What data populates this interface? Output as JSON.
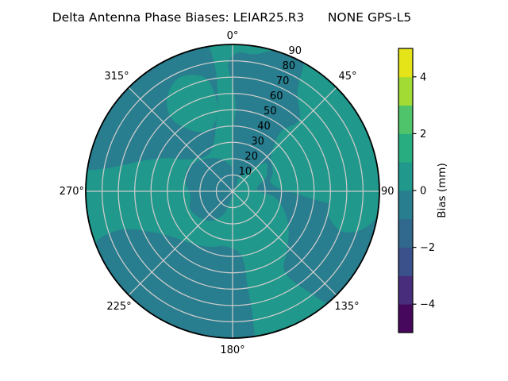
{
  "figure": {
    "background": "#ffffff"
  },
  "chart_data": {
    "type": "polar_contour",
    "title": "Delta Antenna Phase Biases: LEIAR25.R3      NONE GPS-L5",
    "angular_axis": {
      "tick_angles_deg": [
        0,
        45,
        90,
        135,
        180,
        225,
        270,
        315
      ],
      "tick_labels": [
        "0°",
        "45°",
        "90",
        "135°",
        "180°",
        "225°",
        "270°",
        "315°"
      ]
    },
    "radial_axis": {
      "tick_values": [
        10,
        20,
        30,
        40,
        50,
        60,
        70,
        80,
        90
      ],
      "tick_labels": [
        "10",
        "20",
        "30",
        "40",
        "50",
        "60",
        "70",
        "80",
        "90"
      ],
      "label_angle_deg": 22.5,
      "rmax": 90
    },
    "colorbar": {
      "label": "Bias (mm)",
      "vmin": -5,
      "vmax": 5,
      "tick_values": [
        4,
        2,
        0,
        -2,
        -4
      ],
      "tick_labels": [
        "4",
        "2",
        "0",
        "−2",
        "−4"
      ],
      "level_colors_low_to_high": [
        "#46085c",
        "#472d7b",
        "#3b518b",
        "#31688e",
        "#287d8e",
        "#20988b",
        "#27ad80",
        "#50c46a",
        "#a2db34",
        "#e5e419"
      ]
    },
    "field": {
      "base_color": "#20988b",
      "base_level": "0 to 1 mm",
      "negative_color": "#287d8e",
      "negative_level": "-1 to 0 mm"
    },
    "grid_color": "#cccccc",
    "spine_color": "#000000",
    "text_color": "#000000",
    "regions": [
      {
        "name": "negative-region-north-east",
        "level": "-1 to 0",
        "fill": "negative",
        "points": [
          [
            2,
            52
          ],
          [
            0,
            66
          ],
          [
            -2,
            78
          ],
          [
            2,
            85
          ],
          [
            9,
            85
          ],
          [
            15,
            89
          ],
          [
            21,
            94
          ],
          [
            28,
            93
          ],
          [
            33,
            73
          ],
          [
            43,
            60
          ],
          [
            39,
            47
          ],
          [
            46,
            33
          ],
          [
            56,
            29
          ],
          [
            66,
            27
          ],
          [
            76,
            24
          ],
          [
            86,
            28
          ],
          [
            92,
            39
          ],
          [
            96,
            52
          ],
          [
            98,
            68
          ],
          [
            99,
            82
          ],
          [
            100,
            93
          ],
          [
            112,
            95
          ],
          [
            126,
            95
          ],
          [
            138,
            93
          ],
          [
            143,
            77
          ],
          [
            147,
            59
          ],
          [
            137,
            49
          ],
          [
            123,
            41
          ],
          [
            109,
            33
          ],
          [
            98,
            26
          ],
          [
            92,
            18
          ],
          [
            84,
            15
          ],
          [
            76,
            17
          ],
          [
            68,
            22
          ],
          [
            58,
            25
          ],
          [
            50,
            27
          ],
          [
            44,
            21
          ],
          [
            36,
            14
          ],
          [
            26,
            9
          ],
          [
            14,
            6
          ],
          [
            4,
            8
          ],
          [
            -2,
            14
          ],
          [
            0,
            26
          ],
          [
            1,
            40
          ]
        ]
      },
      {
        "name": "negative-region-south-southwest",
        "level": "-1 to 0",
        "fill": "negative",
        "points": [
          [
            172,
            40
          ],
          [
            171,
            60
          ],
          [
            171,
            80
          ],
          [
            173,
            93
          ],
          [
            186,
            95
          ],
          [
            200,
            95
          ],
          [
            215,
            95
          ],
          [
            230,
            95
          ],
          [
            244,
            93
          ],
          [
            250,
            88
          ],
          [
            251,
            72
          ],
          [
            245,
            58
          ],
          [
            234,
            47
          ],
          [
            219,
            41
          ],
          [
            203,
            37
          ],
          [
            187,
            34
          ]
        ]
      },
      {
        "name": "negative-region-west-northwest",
        "level": "-1 to 0",
        "fill": "negative",
        "points": [
          [
            279,
            94
          ],
          [
            290,
            95
          ],
          [
            304,
            95
          ],
          [
            318,
            95
          ],
          [
            332,
            95
          ],
          [
            344,
            95
          ],
          [
            350,
            92
          ],
          [
            352,
            76
          ],
          [
            351,
            58
          ],
          [
            347,
            44
          ],
          [
            339,
            32
          ],
          [
            327,
            27
          ],
          [
            314,
            29
          ],
          [
            304,
            35
          ],
          [
            297,
            45
          ],
          [
            290,
            56
          ],
          [
            284,
            68
          ],
          [
            280,
            80
          ]
        ]
      },
      {
        "name": "negative-region-center",
        "level": "-1 to 0",
        "fill": "negative",
        "points": [
          [
            185,
            3
          ],
          [
            200,
            14
          ],
          [
            215,
            22
          ],
          [
            232,
            26
          ],
          [
            248,
            28
          ],
          [
            264,
            26
          ],
          [
            280,
            29
          ],
          [
            296,
            31
          ],
          [
            312,
            28
          ],
          [
            328,
            24
          ],
          [
            344,
            20
          ],
          [
            358,
            15
          ],
          [
            10,
            11
          ],
          [
            25,
            7
          ],
          [
            38,
            4
          ],
          [
            45,
            2
          ]
        ]
      },
      {
        "name": "positive-pocket-northwest",
        "level": "0 to 1",
        "fill": "base",
        "points": [
          [
            325,
            46
          ],
          [
            337,
            40
          ],
          [
            347,
            45
          ],
          [
            350,
            58
          ],
          [
            346,
            72
          ],
          [
            335,
            77
          ],
          [
            325,
            70
          ],
          [
            320,
            58
          ]
        ]
      },
      {
        "name": "positive-pocket-east",
        "level": "0 to 1",
        "fill": "base",
        "points": [
          [
            91,
            93
          ],
          [
            99,
            91
          ],
          [
            107,
            82
          ],
          [
            110,
            70
          ],
          [
            103,
            60
          ],
          [
            94,
            62
          ],
          [
            90,
            74
          ],
          [
            89,
            84
          ]
        ]
      }
    ]
  }
}
